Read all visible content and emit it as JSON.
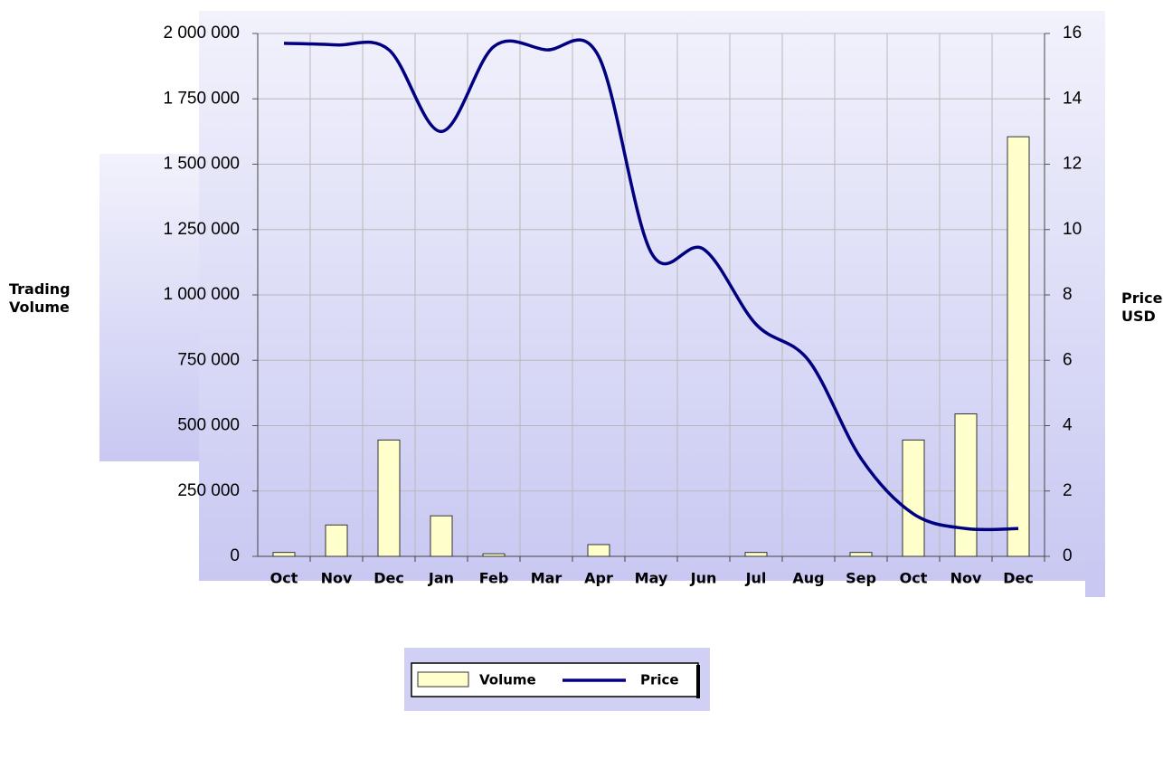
{
  "chart_data": {
    "type": "bar-line",
    "y_label": "Trading Volume",
    "y2_label": "Price USD",
    "categories": [
      "Oct",
      "Nov",
      "Dec",
      "Jan",
      "Feb",
      "Mar",
      "Apr",
      "May",
      "Jun",
      "Jul",
      "Aug",
      "Sep",
      "Oct",
      "Nov",
      "Dec"
    ],
    "series": [
      {
        "name": "Volume",
        "color": "#ffffcc",
        "type": "bar",
        "values": [
          15000,
          120000,
          445000,
          155000,
          10000,
          0,
          45000,
          0,
          0,
          15000,
          0,
          15000,
          445000,
          545000,
          1605000
        ]
      },
      {
        "name": "Price",
        "color": "#000080",
        "type": "line",
        "axis": "y2",
        "values": [
          15.7,
          15.65,
          15.5,
          13.0,
          15.6,
          15.5,
          15.3,
          9.3,
          9.4,
          7.1,
          6.0,
          3.0,
          1.3,
          0.85,
          0.85
        ]
      }
    ],
    "ylim": [
      0,
      2000000
    ],
    "yticks": [
      0,
      {
        "value": 250000,
        "label": "250 000"
      },
      {
        "value": 500000,
        "label": "500 000"
      },
      {
        "value": 750000,
        "label": "750 000"
      },
      {
        "value": 1000000,
        "label": "1 000 000"
      },
      {
        "value": 1250000,
        "label": "1 250 000"
      },
      {
        "value": 1500000,
        "label": "1 500 000"
      },
      {
        "value": 1750000,
        "label": "1 750 000"
      },
      {
        "value": 2000000,
        "label": "2 000 000"
      }
    ],
    "y2lim": [
      0,
      16
    ],
    "y2ticks": [
      0,
      2,
      4,
      6,
      8,
      10,
      12,
      14,
      16
    ],
    "grid": true,
    "legend": "bottom"
  }
}
